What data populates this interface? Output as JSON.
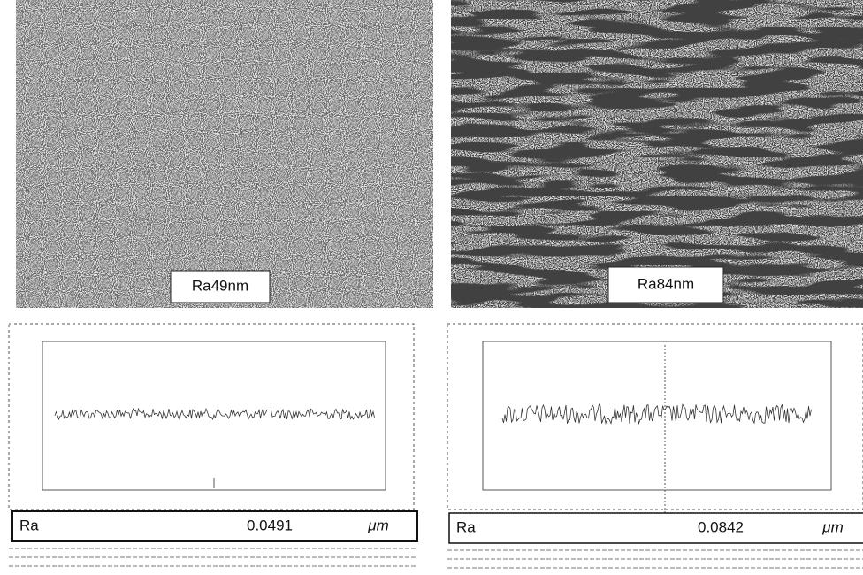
{
  "panels": [
    {
      "image_label": "Ra49nm",
      "param": "Ra",
      "value": "0.0491",
      "unit": "μm"
    },
    {
      "image_label": "Ra84nm",
      "param": "Ra",
      "value": "0.0842",
      "unit": "μm"
    }
  ]
}
